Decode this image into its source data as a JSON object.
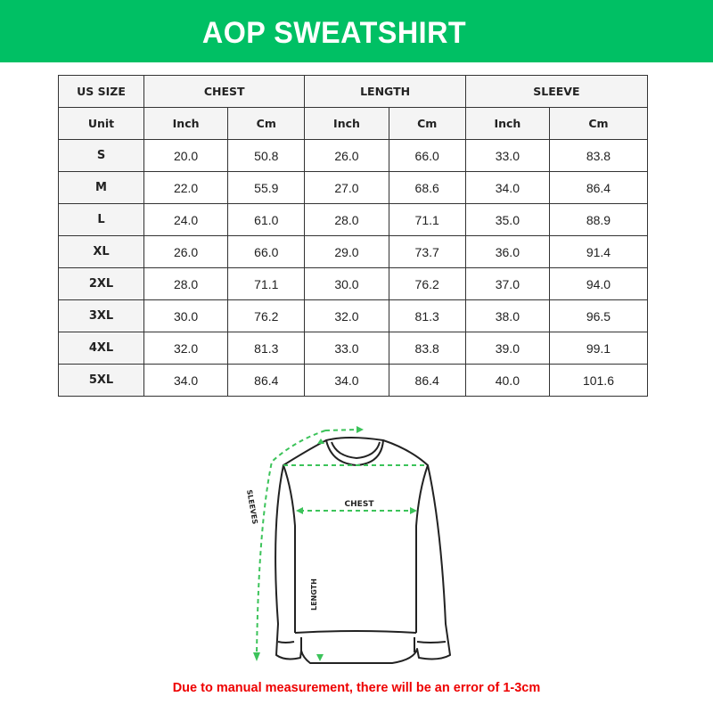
{
  "header": {
    "title": "AOP SWEATSHIRT",
    "color": "#00c064"
  },
  "table": {
    "group_headers": [
      "US SIZE",
      "CHEST",
      "LENGTH",
      "SLEEVE"
    ],
    "unit_row": [
      "Unit",
      "Inch",
      "Cm",
      "Inch",
      "Cm",
      "Inch",
      "Cm"
    ],
    "rows": [
      [
        "S",
        "20.0",
        "50.8",
        "26.0",
        "66.0",
        "33.0",
        "83.8"
      ],
      [
        "M",
        "22.0",
        "55.9",
        "27.0",
        "68.6",
        "34.0",
        "86.4"
      ],
      [
        "L",
        "24.0",
        "61.0",
        "28.0",
        "71.1",
        "35.0",
        "88.9"
      ],
      [
        "XL",
        "26.0",
        "66.0",
        "29.0",
        "73.7",
        "36.0",
        "91.4"
      ],
      [
        "2XL",
        "28.0",
        "71.1",
        "30.0",
        "76.2",
        "37.0",
        "94.0"
      ],
      [
        "3XL",
        "30.0",
        "76.2",
        "32.0",
        "81.3",
        "38.0",
        "96.5"
      ],
      [
        "4XL",
        "32.0",
        "81.3",
        "33.0",
        "83.8",
        "39.0",
        "99.1"
      ],
      [
        "5XL",
        "34.0",
        "86.4",
        "34.0",
        "86.4",
        "40.0",
        "101.6"
      ]
    ]
  },
  "diagram": {
    "chest_label": "CHEST",
    "length_label": "LENGTH",
    "sleeve_label": "SLEEVES",
    "arrow_color": "#3cc35a"
  },
  "note": "Due to manual measurement, there will be an error of 1-3cm",
  "note_color": "#e00000"
}
